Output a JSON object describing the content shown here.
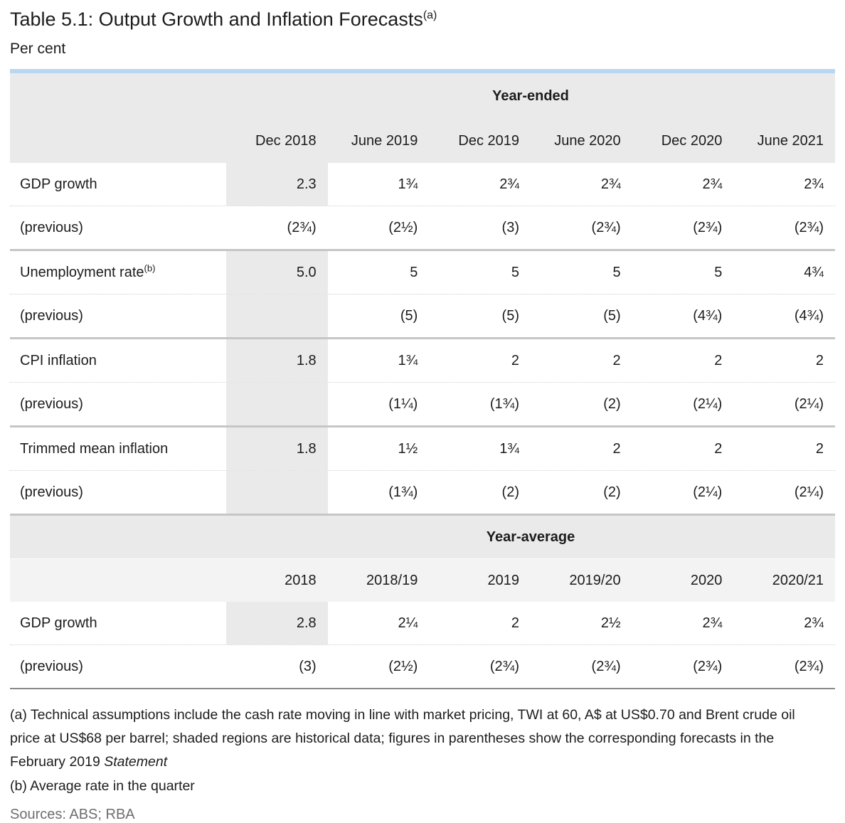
{
  "page": {
    "title": "Table 5.1: Output Growth and Inflation Forecasts",
    "title_note_ref": "(a)",
    "subtitle": "Per cent"
  },
  "colors": {
    "accent_top_border": "#b9d7f0",
    "header_bg": "#eaeaea",
    "shaded_cell_bg": "#eaeaea",
    "group_separator": "#c6c6c6",
    "table_bottom_border": "#8a8a8a",
    "sources_text": "#6e6e6e"
  },
  "table": {
    "sections": [
      {
        "header": "Year-ended",
        "columns": [
          "Dec 2018",
          "June 2019",
          "Dec 2019",
          "June 2020",
          "Dec 2020",
          "June 2021"
        ],
        "rows": [
          {
            "label": "GDP growth",
            "sup": "",
            "shaded_first": true,
            "values": [
              "2.3",
              "1¾",
              "2¾",
              "2¾",
              "2¾",
              "2¾"
            ]
          },
          {
            "label": "(previous)",
            "sup": "",
            "shaded_first": false,
            "values": [
              "(2¾)",
              "(2½)",
              "(3)",
              "(2¾)",
              "(2¾)",
              "(2¾)"
            ]
          },
          {
            "label": "Unemployment rate",
            "sup": "(b)",
            "shaded_first": true,
            "values": [
              "5.0",
              "5",
              "5",
              "5",
              "5",
              "4¾"
            ]
          },
          {
            "label": "(previous)",
            "sup": "",
            "shaded_first": true,
            "values": [
              "",
              "(5)",
              "(5)",
              "(5)",
              "(4¾)",
              "(4¾)"
            ]
          },
          {
            "label": "CPI inflation",
            "sup": "",
            "shaded_first": true,
            "values": [
              "1.8",
              "1¾",
              "2",
              "2",
              "2",
              "2"
            ]
          },
          {
            "label": "(previous)",
            "sup": "",
            "shaded_first": true,
            "values": [
              "",
              "(1¼)",
              "(1¾)",
              "(2)",
              "(2¼)",
              "(2¼)"
            ]
          },
          {
            "label": "Trimmed mean inflation",
            "sup": "",
            "shaded_first": true,
            "values": [
              "1.8",
              "1½",
              "1¾",
              "2",
              "2",
              "2"
            ]
          },
          {
            "label": "(previous)",
            "sup": "",
            "shaded_first": true,
            "values": [
              "",
              "(1¾)",
              "(2)",
              "(2)",
              "(2¼)",
              "(2¼)"
            ]
          }
        ]
      },
      {
        "header": "Year-average",
        "columns": [
          "2018",
          "2018/19",
          "2019",
          "2019/20",
          "2020",
          "2020/21"
        ],
        "rows": [
          {
            "label": "GDP growth",
            "sup": "",
            "shaded_first": true,
            "values": [
              "2.8",
              "2¼",
              "2",
              "2½",
              "2¾",
              "2¾"
            ]
          },
          {
            "label": "(previous)",
            "sup": "",
            "shaded_first": false,
            "values": [
              "(3)",
              "(2½)",
              "(2¾)",
              "(2¾)",
              "(2¾)",
              "(2¾)"
            ]
          }
        ]
      }
    ]
  },
  "footnotes": {
    "a_prefix": "(a) Technical assumptions include the cash rate moving in line with market pricing, TWI at 60, A$ at US$0.70 and Brent crude oil price at US$68 per barrel; shaded regions are historical data; figures in parentheses show the corresponding forecasts in the February 2019 ",
    "a_italic": "Statement",
    "b": "(b) Average rate in the quarter"
  },
  "sources": "Sources: ABS; RBA"
}
